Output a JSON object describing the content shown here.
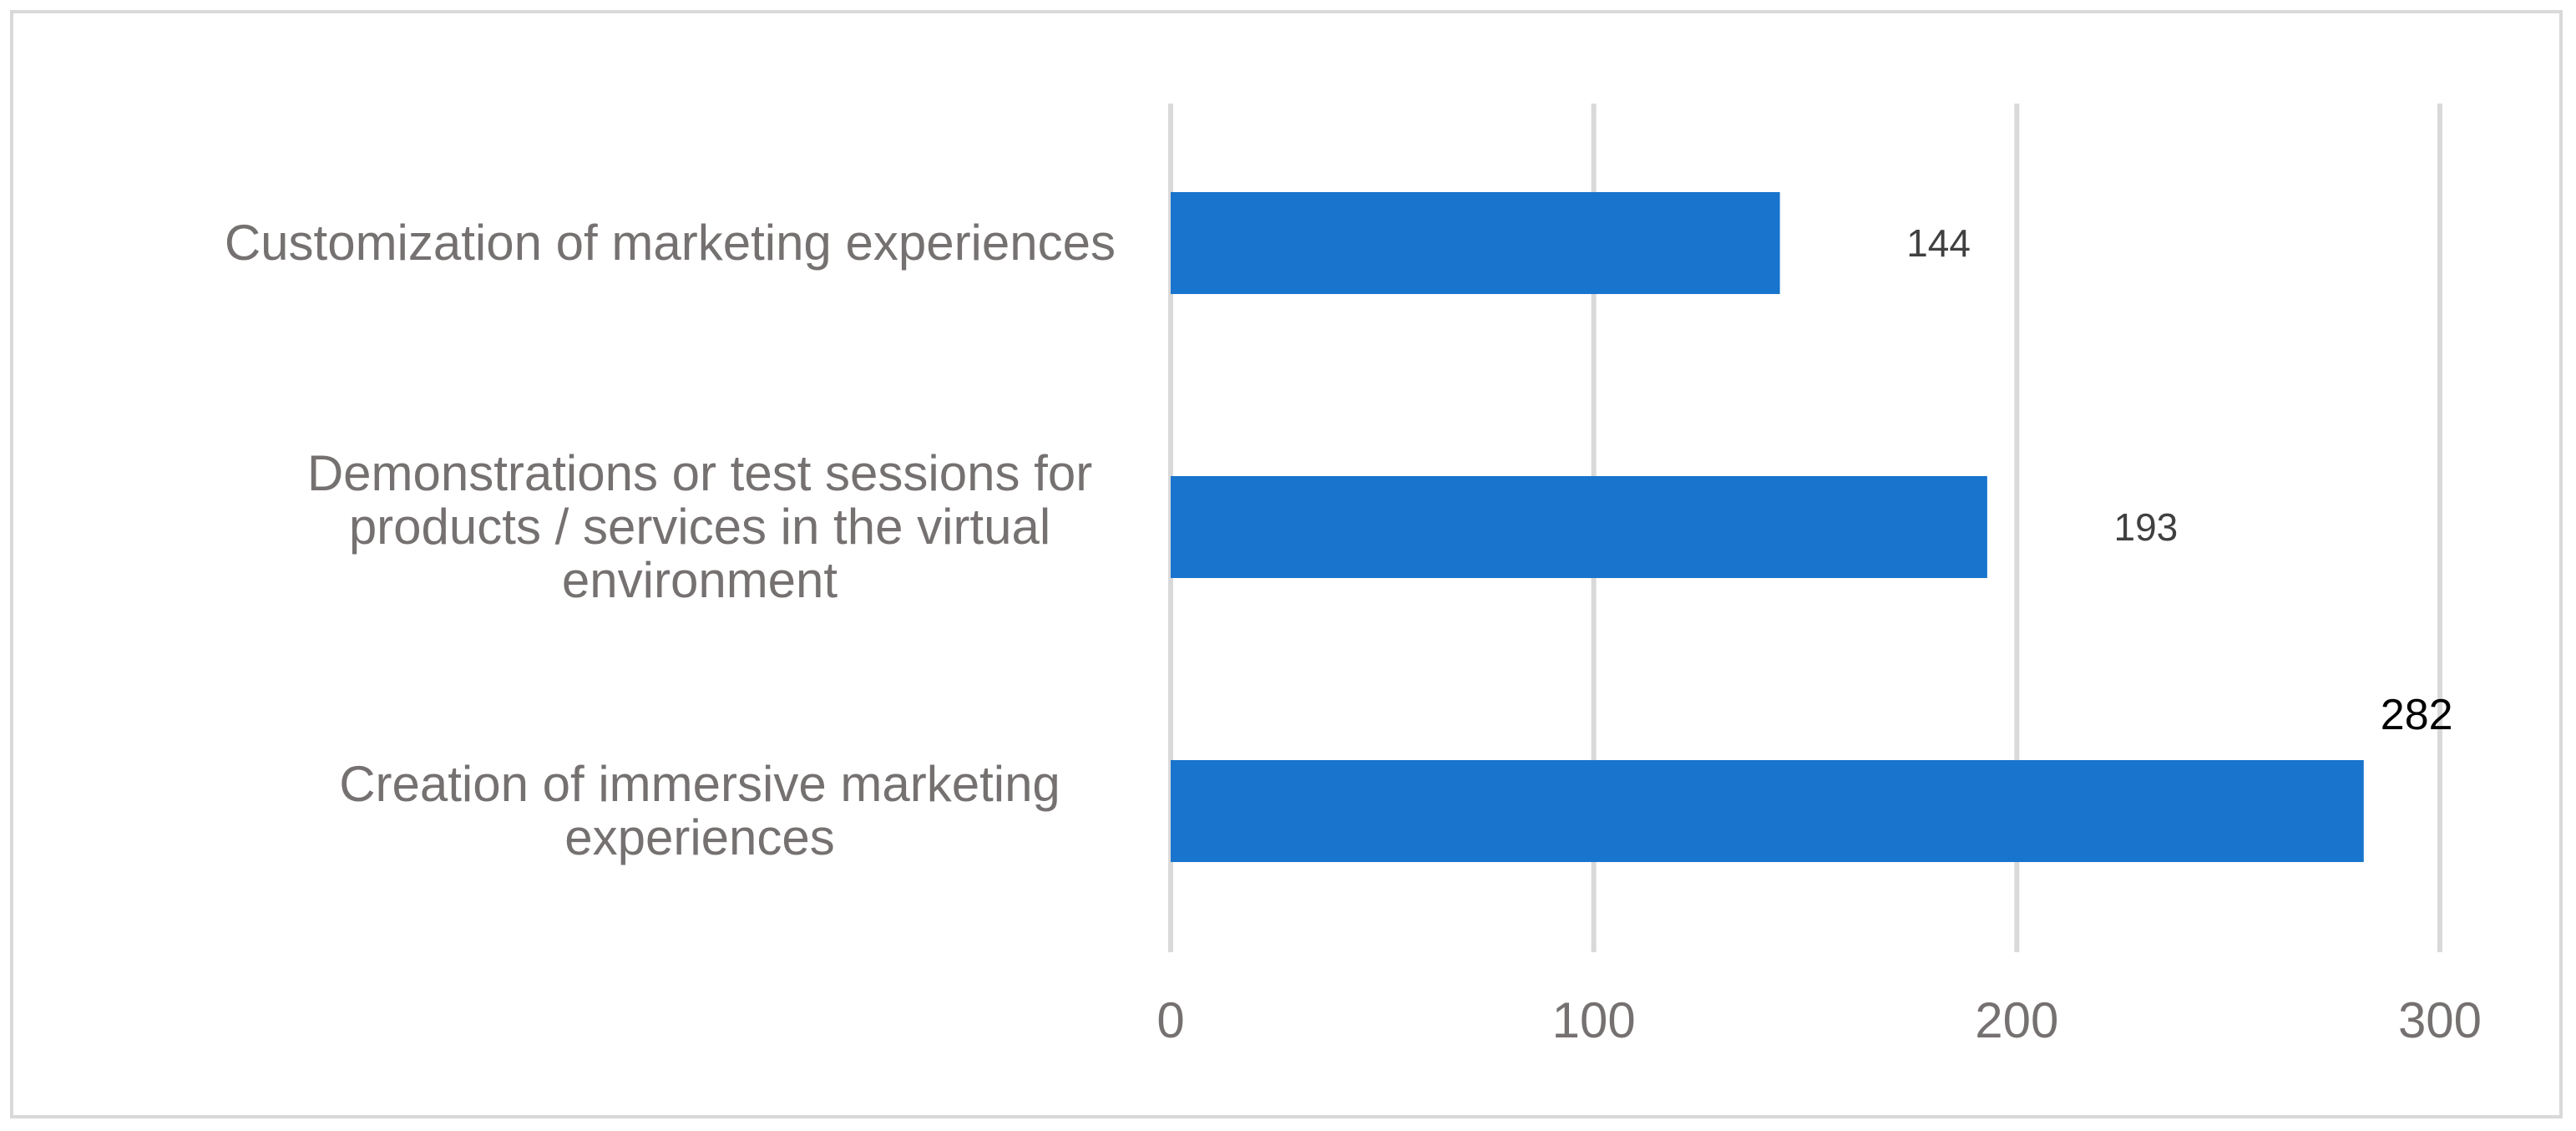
{
  "chart_data": {
    "type": "bar",
    "orientation": "horizontal",
    "categories": [
      "Customization of marketing experiences",
      "Demonstrations or test sessions for products / services in the virtual environment",
      "Creation of immersive marketing experiences"
    ],
    "category_lines": [
      [
        "Customization of marketing experiences"
      ],
      [
        "Demonstrations or test sessions for",
        "products / services in the virtual",
        "environment"
      ],
      [
        "Creation of immersive marketing",
        "experiences"
      ]
    ],
    "values": [
      144,
      193,
      282
    ],
    "data_labels": [
      "144",
      "193",
      "282"
    ],
    "x_ticks": [
      "0",
      "100",
      "200",
      "300"
    ],
    "xlim": [
      0,
      300
    ],
    "title": "",
    "xlabel": "",
    "ylabel": "",
    "grid": true,
    "legend": "none",
    "colors": {
      "bar": "#1874cd",
      "grid": "#d9d9d9",
      "label": "#767171",
      "border": "#d9d9d9"
    }
  }
}
